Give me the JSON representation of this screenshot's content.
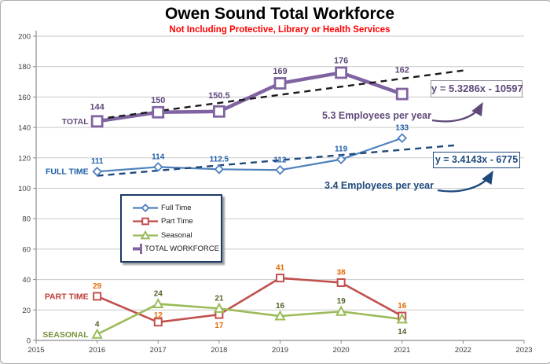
{
  "chart_data": {
    "type": "line",
    "title": "Owen Sound Total Workforce",
    "subtitle": "Not Including Protective, Library or Health Services",
    "title_color": "#000000",
    "subtitle_color": "#FF0000",
    "x": [
      2016,
      2017,
      2018,
      2019,
      2020,
      2021
    ],
    "x_ticks": [
      2015,
      2016,
      2017,
      2018,
      2019,
      2020,
      2021,
      2022,
      2023
    ],
    "y_ticks": [
      0,
      20,
      40,
      60,
      80,
      100,
      120,
      140,
      160,
      180,
      200
    ],
    "xlim": [
      2015,
      2023
    ],
    "ylim": [
      0,
      200
    ],
    "grid": "horizontal-on",
    "legend_position": "middle-left",
    "series": [
      {
        "name": "Full Time",
        "axis_label": "FULL TIME",
        "values": [
          111,
          114,
          112.5,
          112,
          119,
          133
        ],
        "color": "#4F81BD",
        "label_color": "#1F5FA9",
        "axis_label_color": "#1F5FA9",
        "marker": "diamond"
      },
      {
        "name": "Part Time",
        "axis_label": "PART TIME",
        "values": [
          29,
          12,
          17,
          41,
          38,
          16
        ],
        "color": "#C0504D",
        "label_color": "#E36C09",
        "axis_label_color": "#BE3A34",
        "marker": "square"
      },
      {
        "name": "Seasonal",
        "axis_label": "SEASONAL",
        "values": [
          4,
          24,
          21,
          16,
          19,
          14
        ],
        "color": "#9BBB59",
        "label_color": "#4F6228",
        "axis_label_color": "#76933C",
        "marker": "triangle"
      },
      {
        "name": "TOTAL WORKFORCE",
        "axis_label": "TOTAL",
        "values": [
          144,
          150,
          150.5,
          169,
          176,
          162
        ],
        "color": "#8064A2",
        "label_color": "#604A7B",
        "axis_label_color": "#604A7B",
        "marker": "square-bold"
      }
    ],
    "trendlines": [
      {
        "series": "TOTAL WORKFORCE",
        "equation": "y = 5.3286x - 10597",
        "slope": 5.3286,
        "intercept": -10597,
        "annotation": "5.3 Employees per year",
        "line_color": "#1A1A1A",
        "text_color": "#604A7B",
        "box_border_color": "#97909E"
      },
      {
        "series": "Full Time",
        "equation": "y = 3.4143x - 6775",
        "slope": 3.4143,
        "intercept": -6775,
        "annotation": "3.4 Employees per year",
        "line_color": "#1F497D",
        "text_color": "#1F497D",
        "box_border_color": "#1F497D"
      }
    ],
    "legend": {
      "items": [
        "Full Time",
        "Part Time",
        "Seasonal",
        "TOTAL WORKFORCE"
      ]
    }
  }
}
